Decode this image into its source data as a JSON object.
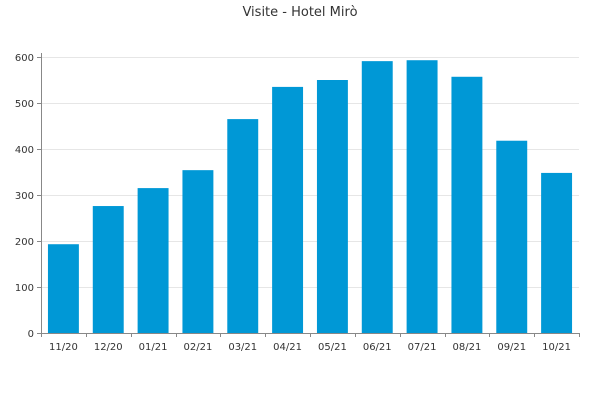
{
  "chart_data": {
    "type": "bar",
    "title": "Visite - Hotel Mirò",
    "categories": [
      "11/20",
      "12/20",
      "01/21",
      "02/21",
      "03/21",
      "04/21",
      "05/21",
      "06/21",
      "07/21",
      "08/21",
      "09/21",
      "10/21"
    ],
    "values": [
      193,
      276,
      315,
      354,
      465,
      535,
      550,
      591,
      593,
      557,
      418,
      348
    ],
    "ylim": [
      0,
      600
    ],
    "yticks": [
      0,
      100,
      200,
      300,
      400,
      500,
      600
    ],
    "grid": true,
    "bar_color": "#0098d6"
  }
}
